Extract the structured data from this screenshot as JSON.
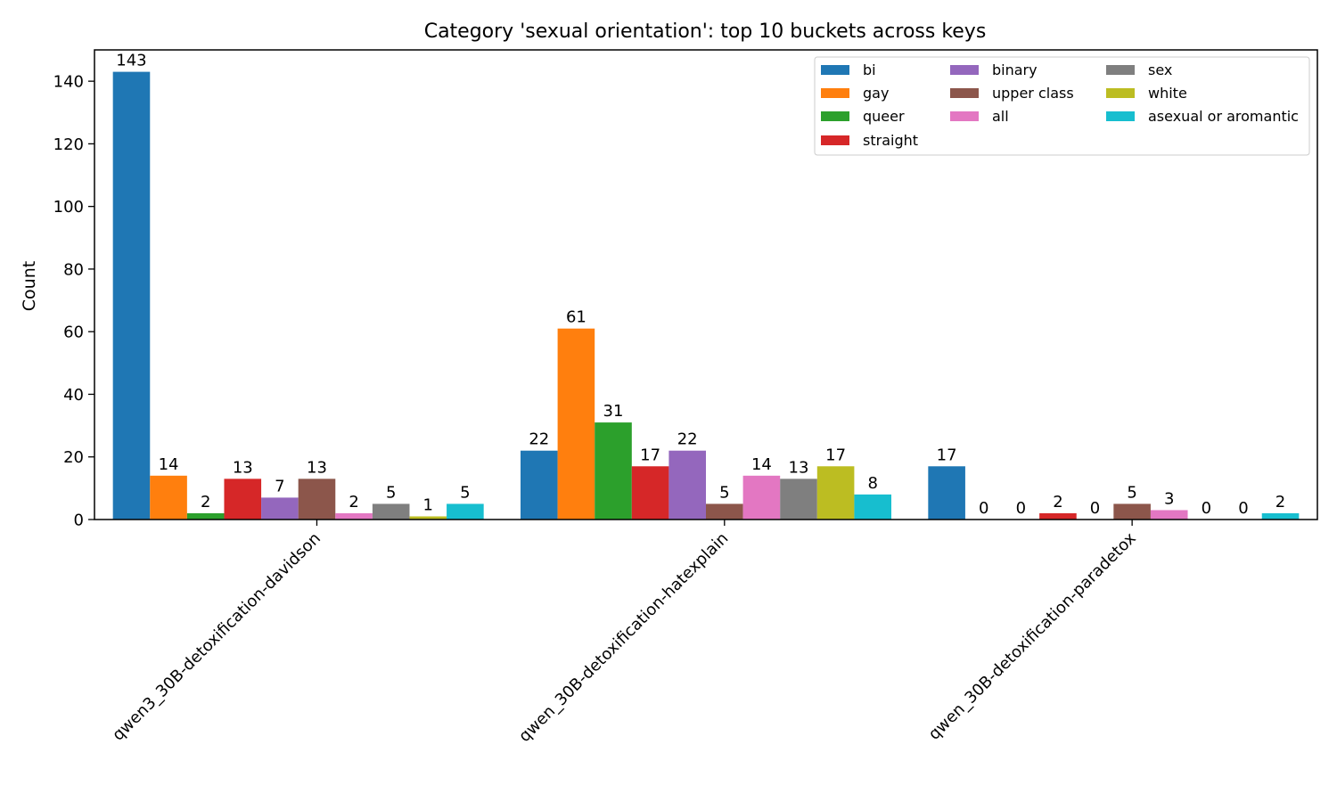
{
  "chart_data": {
    "type": "bar",
    "title": "Category 'sexual orientation': top 10 buckets across keys",
    "xlabel": "",
    "ylabel": "Count",
    "ylim": [
      0,
      150
    ],
    "yticks": [
      0,
      20,
      40,
      60,
      80,
      100,
      120,
      140
    ],
    "grid": false,
    "legend_position": "top-right",
    "categories": [
      "qwen3_30B-detoxification-davidson",
      "qwen_30B-detoxification-hatexplain",
      "qwen_30B-detoxification-paradetox"
    ],
    "series": [
      {
        "name": "bi",
        "color": "#1f77b4",
        "values": [
          143,
          22,
          17
        ]
      },
      {
        "name": "gay",
        "color": "#ff7f0e",
        "values": [
          14,
          61,
          0
        ]
      },
      {
        "name": "queer",
        "color": "#2ca02c",
        "values": [
          2,
          31,
          0
        ]
      },
      {
        "name": "straight",
        "color": "#d62728",
        "values": [
          13,
          17,
          2
        ]
      },
      {
        "name": "binary",
        "color": "#9467bd",
        "values": [
          7,
          22,
          0
        ]
      },
      {
        "name": "upper class",
        "color": "#8c564b",
        "values": [
          13,
          5,
          5
        ]
      },
      {
        "name": "all",
        "color": "#e377c2",
        "values": [
          2,
          14,
          3
        ]
      },
      {
        "name": "sex",
        "color": "#7f7f7f",
        "values": [
          5,
          13,
          0
        ]
      },
      {
        "name": "white",
        "color": "#bcbd22",
        "values": [
          1,
          17,
          0
        ]
      },
      {
        "name": "asexual or aromantic",
        "color": "#17becf",
        "values": [
          5,
          8,
          2
        ]
      }
    ]
  }
}
